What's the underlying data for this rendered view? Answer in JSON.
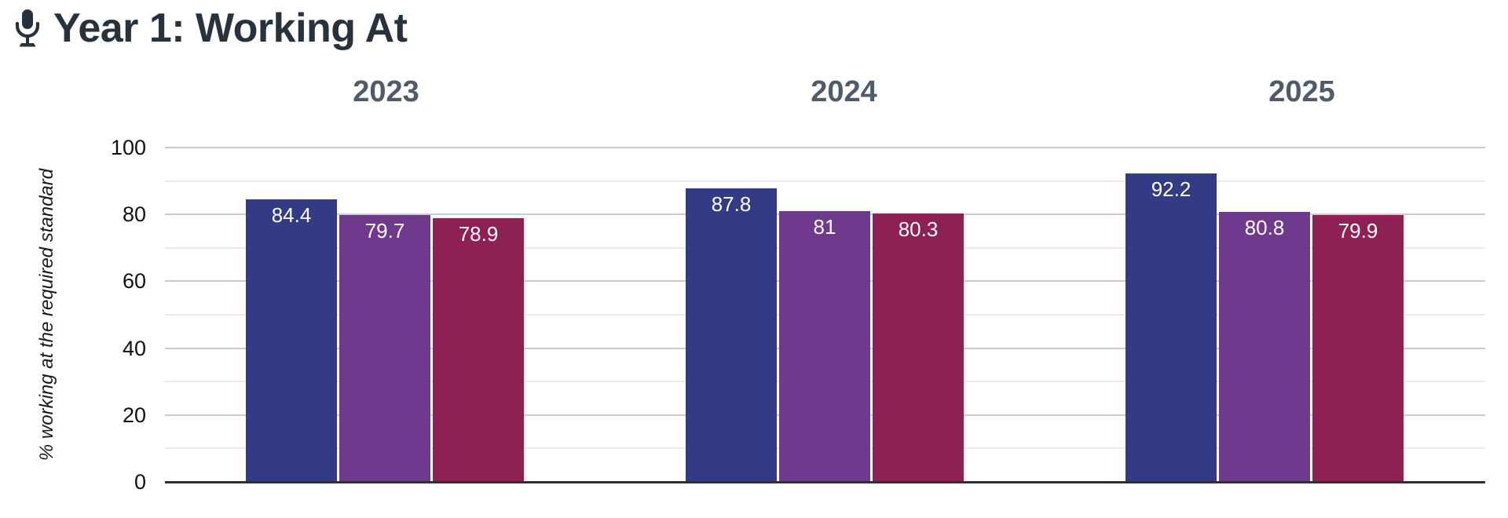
{
  "header": {
    "title": "Year 1: Working At",
    "icon": "microphone-icon"
  },
  "colors": {
    "title": "#27323c",
    "year_header": "#4f5b69",
    "grid_major": "#c9cccf",
    "grid_minor": "#ebebec",
    "axis_line": "#303030",
    "tick_label": "#111111",
    "bar_value_label": "#ffffff",
    "series": [
      "#343b85",
      "#6f3a8e",
      "#8e2154"
    ]
  },
  "chart_data": {
    "type": "bar",
    "title": "Year 1: Working At",
    "categories": [
      "2023",
      "2024",
      "2025"
    ],
    "series": [
      {
        "name": "series-1",
        "color": "#343b85",
        "values": [
          84.4,
          87.8,
          92.2
        ]
      },
      {
        "name": "series-2",
        "color": "#6f3a8e",
        "values": [
          79.7,
          81,
          80.8
        ]
      },
      {
        "name": "series-3",
        "color": "#8e2154",
        "values": [
          78.9,
          80.3,
          79.9
        ]
      }
    ],
    "xlabel": "",
    "ylabel": "% working at the required standard",
    "ylim": [
      0,
      100
    ],
    "yticks": [
      0,
      20,
      40,
      60,
      80,
      100
    ],
    "minor_grid_step": 10,
    "grid": true,
    "legend": "none",
    "value_labels_shown": true
  }
}
